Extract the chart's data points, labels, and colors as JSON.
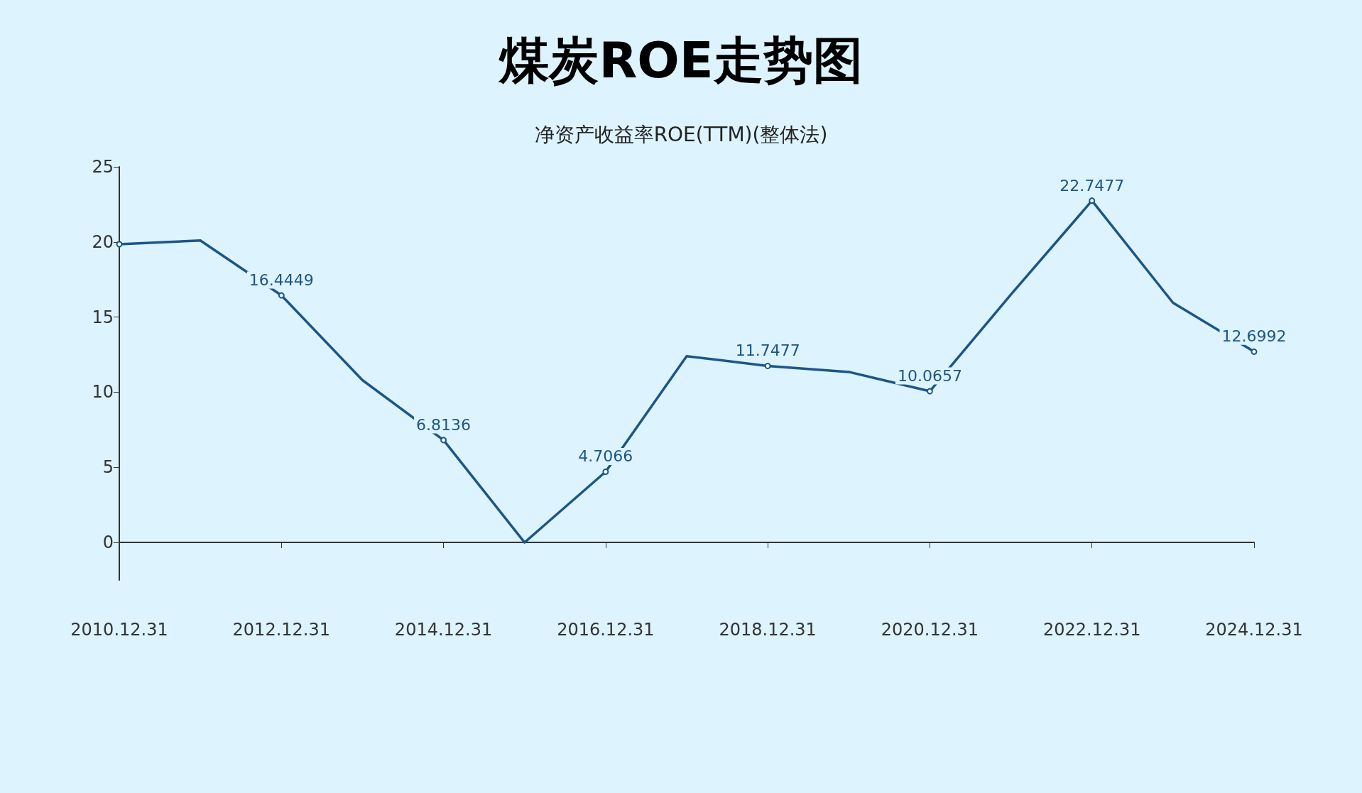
{
  "chart_data": {
    "type": "line",
    "title": "煤炭ROE走势图",
    "subtitle": "净资产收益率ROE(TTM)(整体法)",
    "categories": [
      "2010.12.31",
      null,
      "2012.12.31",
      null,
      "2014.12.31",
      null,
      "2016.12.31",
      null,
      "2018.12.31",
      null,
      "2020.12.31",
      null,
      "2022.12.31",
      null,
      "2024.12.31"
    ],
    "series": [
      {
        "color": "#1b5689",
        "values": [
          19.85,
          20.1,
          16.4449,
          10.8,
          6.8136,
          0,
          4.7066,
          12.4,
          11.7477,
          11.35,
          10.0657,
          16.5,
          22.7477,
          15.95,
          12.6992
        ],
        "value_labels": [
          null,
          null,
          "16.4449",
          null,
          "6.8136",
          null,
          "4.7066",
          null,
          "11.7477",
          null,
          "10.0657",
          null,
          "22.7477",
          null,
          "12.6992"
        ]
      }
    ],
    "ylim": [
      -2.5,
      25
    ],
    "yticks": [
      0,
      5,
      10,
      15,
      20,
      25
    ],
    "marker": "circle",
    "line_style": "solid"
  }
}
